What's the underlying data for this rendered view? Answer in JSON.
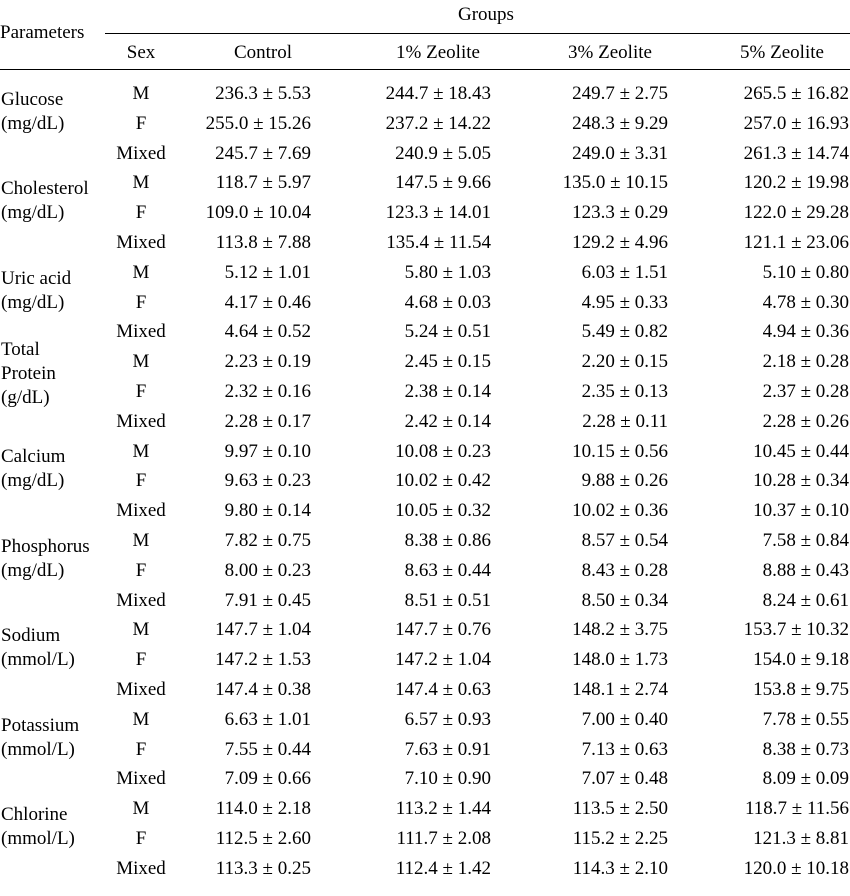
{
  "header": {
    "groups_label": "Groups",
    "parameters_label": "Parameters",
    "columns": [
      "Sex",
      "Control",
      "1% Zeolite",
      "3% Zeolite",
      "5% Zeolite"
    ]
  },
  "parameters": [
    {
      "name_lines": [
        "Glucose",
        "(mg/dL)"
      ],
      "rows": [
        {
          "sex": "M",
          "values": [
            "236.3 ± 5.53",
            "244.7 ± 18.43",
            "249.7 ± 2.75",
            "265.5 ± 16.82"
          ]
        },
        {
          "sex": "F",
          "values": [
            "255.0 ± 15.26",
            "237.2 ± 14.22",
            "248.3 ± 9.29",
            "257.0 ± 16.93"
          ]
        },
        {
          "sex": "Mixed",
          "values": [
            "245.7 ± 7.69",
            "240.9 ± 5.05",
            "249.0 ± 3.31",
            "261.3 ± 14.74"
          ]
        }
      ]
    },
    {
      "name_lines": [
        "Cholesterol",
        "(mg/dL)"
      ],
      "rows": [
        {
          "sex": "M",
          "values": [
            "118.7 ± 5.97",
            "147.5 ± 9.66",
            "135.0 ± 10.15",
            "120.2 ± 19.98"
          ]
        },
        {
          "sex": "F",
          "values": [
            "109.0 ± 10.04",
            "123.3 ± 14.01",
            "123.3 ± 0.29",
            "122.0 ± 29.28"
          ]
        },
        {
          "sex": "Mixed",
          "values": [
            "113.8 ± 7.88",
            "135.4 ± 11.54",
            "129.2 ± 4.96",
            "121.1 ± 23.06"
          ]
        }
      ]
    },
    {
      "name_lines": [
        "Uric acid",
        "(mg/dL)"
      ],
      "rows": [
        {
          "sex": "M",
          "values": [
            "5.12 ± 1.01",
            "5.80 ± 1.03",
            "6.03 ± 1.51",
            "5.10 ± 0.80"
          ]
        },
        {
          "sex": "F",
          "values": [
            "4.17 ± 0.46",
            "4.68 ± 0.03",
            "4.95 ± 0.33",
            "4.78 ± 0.30"
          ]
        },
        {
          "sex": "Mixed",
          "values": [
            "4.64 ± 0.52",
            "5.24 ± 0.51",
            "5.49 ± 0.82",
            "4.94 ± 0.36"
          ]
        }
      ]
    },
    {
      "name_lines": [
        "Total",
        "Protein",
        "(g/dL)"
      ],
      "rows": [
        {
          "sex": "M",
          "values": [
            "2.23 ± 0.19",
            "2.45 ± 0.15",
            "2.20 ± 0.15",
            "2.18 ± 0.28"
          ]
        },
        {
          "sex": "F",
          "values": [
            "2.32 ± 0.16",
            "2.38 ± 0.14",
            "2.35 ± 0.13",
            "2.37 ± 0.28"
          ]
        },
        {
          "sex": "Mixed",
          "values": [
            "2.28 ± 0.17",
            "2.42 ± 0.14",
            "2.28 ± 0.11",
            "2.28 ± 0.26"
          ]
        }
      ]
    },
    {
      "name_lines": [
        "Calcium",
        "(mg/dL)"
      ],
      "rows": [
        {
          "sex": "M",
          "values": [
            "9.97 ± 0.10",
            "10.08 ± 0.23",
            "10.15 ± 0.56",
            "10.45 ± 0.44"
          ]
        },
        {
          "sex": "F",
          "values": [
            "9.63 ± 0.23",
            "10.02 ± 0.42",
            "9.88 ± 0.26",
            "10.28 ± 0.34"
          ]
        },
        {
          "sex": "Mixed",
          "values": [
            "9.80 ± 0.14",
            "10.05 ± 0.32",
            "10.02 ± 0.36",
            "10.37 ± 0.10"
          ]
        }
      ]
    },
    {
      "name_lines": [
        "Phosphorus",
        "(mg/dL)"
      ],
      "rows": [
        {
          "sex": "M",
          "values": [
            "7.82 ± 0.75",
            "8.38 ± 0.86",
            "8.57 ± 0.54",
            "7.58 ± 0.84"
          ]
        },
        {
          "sex": "F",
          "values": [
            "8.00 ± 0.23",
            "8.63 ± 0.44",
            "8.43 ± 0.28",
            "8.88 ± 0.43"
          ]
        },
        {
          "sex": "Mixed",
          "values": [
            "7.91 ± 0.45",
            "8.51 ± 0.51",
            "8.50 ± 0.34",
            "8.24 ± 0.61"
          ]
        }
      ]
    },
    {
      "name_lines": [
        "Sodium",
        "(mmol/L)"
      ],
      "rows": [
        {
          "sex": "M",
          "values": [
            "147.7 ± 1.04",
            "147.7 ± 0.76",
            "148.2 ± 3.75",
            "153.7 ± 10.32"
          ]
        },
        {
          "sex": "F",
          "values": [
            "147.2 ± 1.53",
            "147.2 ± 1.04",
            "148.0 ± 1.73",
            "154.0 ± 9.18"
          ]
        },
        {
          "sex": "Mixed",
          "values": [
            "147.4 ± 0.38",
            "147.4 ± 0.63",
            "148.1 ± 2.74",
            "153.8 ± 9.75"
          ]
        }
      ]
    },
    {
      "name_lines": [
        "Potassium",
        "(mmol/L)"
      ],
      "rows": [
        {
          "sex": "M",
          "values": [
            "6.63 ± 1.01",
            "6.57 ± 0.93",
            "7.00 ± 0.40",
            "7.78 ± 0.55"
          ]
        },
        {
          "sex": "F",
          "values": [
            "7.55 ± 0.44",
            "7.63 ± 0.91",
            "7.13 ± 0.63",
            "8.38 ± 0.73"
          ]
        },
        {
          "sex": "Mixed",
          "values": [
            "7.09 ± 0.66",
            "7.10 ± 0.90",
            "7.07 ± 0.48",
            "8.09 ± 0.09"
          ]
        }
      ]
    },
    {
      "name_lines": [
        "Chlorine",
        "(mmol/L)"
      ],
      "rows": [
        {
          "sex": "M",
          "values": [
            "114.0 ± 2.18",
            "113.2 ± 1.44",
            "113.5 ± 2.50",
            "118.7 ± 11.56"
          ]
        },
        {
          "sex": "F",
          "values": [
            "112.5 ± 2.60",
            "111.7 ± 2.08",
            "115.2 ± 2.25",
            "121.3 ± 8.81"
          ]
        },
        {
          "sex": "Mixed",
          "values": [
            "113.3 ± 0.25",
            "112.4 ± 1.42",
            "114.3 ± 2.10",
            "120.0 ± 10.18"
          ]
        }
      ]
    }
  ]
}
